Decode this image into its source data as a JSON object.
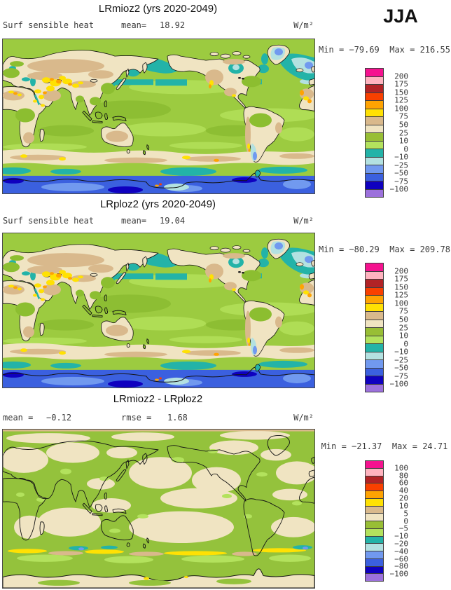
{
  "season": "JJA",
  "palette": [
    "#F5128F",
    "#FFB3BF",
    "#B22326",
    "#F94000",
    "#FFA302",
    "#FFE103",
    "#D9B98C",
    "#F0E4C2",
    "#98BE35",
    "#B3E25D",
    "#23B3A8",
    "#B3E1E1",
    "#7199EF",
    "#3B60DF",
    "#0F00BF",
    "#9C71DC"
  ],
  "map_colors": {
    "ocean": "#9CCB40",
    "ocean_light": "#AFDD55",
    "ocean_dark": "#8DBE33",
    "land": "#F0E4C2",
    "tan": "#D9B98C",
    "olive": "#8CBE30",
    "teal": "#23B3A8",
    "cyan": "#B3E1E1",
    "cornflower": "#7199EF",
    "royal": "#3B60DF",
    "darkblue": "#0F00BF",
    "yellow": "#FFE103",
    "orange": "#FFA302",
    "red": "#F94000",
    "diff_bg": "#94C23C",
    "coast": "#141414"
  },
  "panels": [
    {
      "title": "LRmioz2 (yrs 2020-2049)",
      "left_label": "Surf sensible heat",
      "stat1_label": "mean=",
      "stat1_value": "18.92",
      "units": "W/m²",
      "min_label": "Min =",
      "min_value": "−79.69",
      "max_label": "Max =",
      "max_value": "216.55",
      "colorbar_labels": [
        "200",
        "175",
        "150",
        "125",
        "100",
        "75",
        "50",
        "25",
        "10",
        "0",
        "−10",
        "−25",
        "−50",
        "−75",
        "−100"
      ]
    },
    {
      "title": "LRploz2 (yrs 2020-2049)",
      "left_label": "Surf sensible heat",
      "stat1_label": "mean=",
      "stat1_value": "19.04",
      "units": "W/m²",
      "min_label": "Min =",
      "min_value": "−80.29",
      "max_label": "Max =",
      "max_value": "209.78",
      "colorbar_labels": [
        "200",
        "175",
        "150",
        "125",
        "100",
        "75",
        "50",
        "25",
        "10",
        "0",
        "−10",
        "−25",
        "−50",
        "−75",
        "−100"
      ]
    },
    {
      "title": "LRmioz2 - LRploz2",
      "left_label": "",
      "stat1_label": "mean =",
      "stat1_value": "−0.12",
      "stat2_label": "rmse =",
      "stat2_value": "1.68",
      "units": "W/m²",
      "min_label": "Min =",
      "min_value": "−21.37",
      "max_label": "Max =",
      "max_value": "24.71",
      "colorbar_labels": [
        "100",
        "80",
        "60",
        "40",
        "20",
        "10",
        "5",
        "0",
        "−5",
        "−10",
        "−20",
        "−40",
        "−60",
        "−80",
        "−100"
      ]
    }
  ],
  "chart_data": [
    {
      "type": "heatmap",
      "subtype": "global-filled-contour-map",
      "title": "LRmioz2 (yrs 2020-2049)",
      "variable": "Surf sensible heat",
      "season": "JJA",
      "units": "W/m²",
      "mean": 18.92,
      "min": -79.69,
      "max": 216.55,
      "levels": [
        -100,
        -75,
        -50,
        -25,
        -10,
        0,
        10,
        25,
        50,
        75,
        100,
        125,
        150,
        175,
        200
      ],
      "palette_top_to_bottom": [
        "#F5128F",
        "#FFB3BF",
        "#B22326",
        "#F94000",
        "#FFA302",
        "#FFE103",
        "#D9B98C",
        "#F0E4C2",
        "#98BE35",
        "#B3E25D",
        "#23B3A8",
        "#B3E1E1",
        "#7199EF",
        "#3B60DF",
        "#0F00BF",
        "#9C71DC"
      ],
      "legend_position": "right",
      "projection": "cylindrical, Pacific-centered, lon 0-360, lat 90N-90S"
    },
    {
      "type": "heatmap",
      "subtype": "global-filled-contour-map",
      "title": "LRploz2 (yrs 2020-2049)",
      "variable": "Surf sensible heat",
      "season": "JJA",
      "units": "W/m²",
      "mean": 19.04,
      "min": -80.29,
      "max": 209.78,
      "levels": [
        -100,
        -75,
        -50,
        -25,
        -10,
        0,
        10,
        25,
        50,
        75,
        100,
        125,
        150,
        175,
        200
      ],
      "palette_top_to_bottom": [
        "#F5128F",
        "#FFB3BF",
        "#B22326",
        "#F94000",
        "#FFA302",
        "#FFE103",
        "#D9B98C",
        "#F0E4C2",
        "#98BE35",
        "#B3E25D",
        "#23B3A8",
        "#B3E1E1",
        "#7199EF",
        "#3B60DF",
        "#0F00BF",
        "#9C71DC"
      ],
      "legend_position": "right",
      "projection": "cylindrical, Pacific-centered, lon 0-360, lat 90N-90S"
    },
    {
      "type": "heatmap",
      "subtype": "global-difference-map",
      "title": "LRmioz2 - LRploz2",
      "season": "JJA",
      "units": "W/m²",
      "mean": -0.12,
      "rmse": 1.68,
      "min": -21.37,
      "max": 24.71,
      "levels": [
        -100,
        -80,
        -60,
        -40,
        -20,
        -10,
        -5,
        0,
        5,
        10,
        20,
        40,
        60,
        80,
        100
      ],
      "palette_top_to_bottom": [
        "#F5128F",
        "#FFB3BF",
        "#B22326",
        "#F94000",
        "#FFA302",
        "#FFE103",
        "#D9B98C",
        "#F0E4C2",
        "#98BE35",
        "#B3E25D",
        "#23B3A8",
        "#B3E1E1",
        "#7199EF",
        "#3B60DF",
        "#0F00BF",
        "#9C71DC"
      ],
      "legend_position": "right",
      "projection": "cylindrical, Pacific-centered, lon 0-360, lat 90N-90S"
    }
  ]
}
